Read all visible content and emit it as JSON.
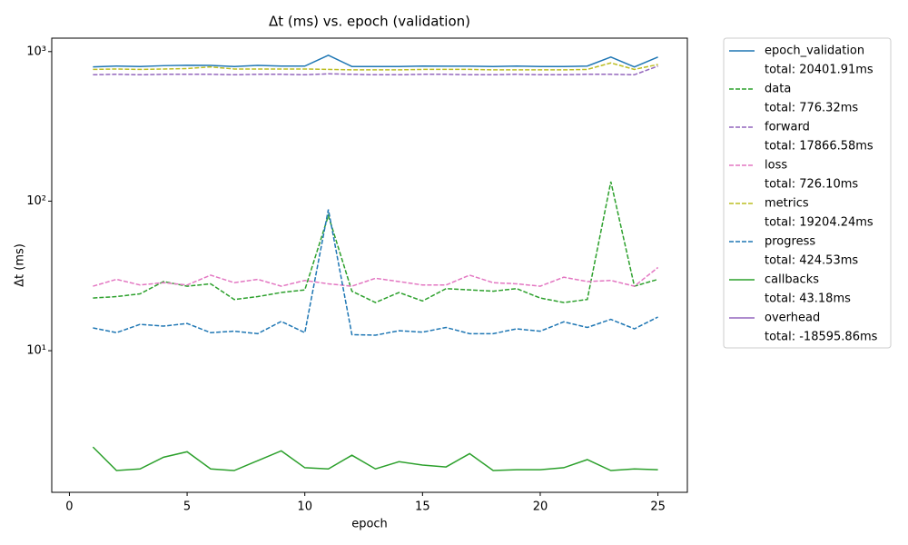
{
  "chart_data": {
    "type": "line",
    "title": "Δt (ms) vs. epoch (validation)",
    "xlabel": "epoch",
    "ylabel": "Δt (ms)",
    "x": [
      1,
      2,
      3,
      4,
      5,
      6,
      7,
      8,
      9,
      10,
      11,
      12,
      13,
      14,
      15,
      16,
      17,
      18,
      19,
      20,
      21,
      22,
      23,
      24,
      25
    ],
    "xlim": [
      -0.75,
      26.25
    ],
    "xticks": [
      0,
      5,
      10,
      15,
      20,
      25
    ],
    "ylim": [
      1.13,
      1230
    ],
    "log_y": true,
    "yticks": [
      {
        "value": 10,
        "label": "10¹"
      },
      {
        "value": 100,
        "label": "10²"
      },
      {
        "value": 1000,
        "label": "10³"
      }
    ],
    "legend": "outside-right",
    "series": [
      {
        "name": "epoch_validation",
        "total": "total: 20401.91ms",
        "color": "#1f77b4",
        "dashed": false,
        "values": [
          790,
          800,
          795,
          805,
          810,
          808,
          795,
          808,
          800,
          800,
          945,
          795,
          795,
          795,
          800,
          798,
          798,
          795,
          800,
          795,
          795,
          800,
          920,
          790,
          920
        ]
      },
      {
        "name": "data",
        "total": "total: 776.32ms",
        "color": "#2ca02c",
        "dashed": true,
        "values": [
          22.5,
          23,
          24,
          29,
          27,
          28,
          22,
          23,
          24.5,
          25.5,
          80,
          25,
          21,
          24.5,
          21.5,
          26,
          25.5,
          25,
          26,
          22.5,
          21,
          22,
          135,
          27,
          30
        ]
      },
      {
        "name": "forward",
        "total": "total: 17866.58ms",
        "color": "#9467bd",
        "dashed": true,
        "values": [
          700,
          705,
          700,
          705,
          705,
          705,
          700,
          705,
          705,
          700,
          710,
          705,
          700,
          700,
          705,
          705,
          700,
          700,
          705,
          700,
          700,
          705,
          705,
          700,
          800
        ]
      },
      {
        "name": "loss",
        "total": "total: 726.10ms",
        "color": "#e377c2",
        "dashed": true,
        "values": [
          27,
          30,
          27.5,
          28.5,
          27.5,
          32,
          28.5,
          30,
          27,
          29.5,
          28,
          27,
          30.5,
          29,
          27.5,
          27.5,
          32,
          28.5,
          28,
          27,
          31,
          29,
          29.5,
          27,
          36
        ]
      },
      {
        "name": "metrics",
        "total": "total: 19204.24ms",
        "color": "#bcbd22",
        "dashed": true,
        "values": [
          760,
          765,
          760,
          765,
          770,
          790,
          765,
          765,
          765,
          765,
          760,
          755,
          755,
          755,
          760,
          760,
          760,
          755,
          755,
          755,
          755,
          760,
          840,
          760,
          820
        ]
      },
      {
        "name": "progress",
        "total": "total: 424.53ms",
        "color": "#1f77b4",
        "dashed": true,
        "values": [
          14.2,
          13.2,
          15,
          14.6,
          15.2,
          13.2,
          13.5,
          13,
          15.7,
          13.2,
          88,
          12.8,
          12.7,
          13.6,
          13.3,
          14.3,
          13,
          13,
          14,
          13.5,
          15.6,
          14.3,
          16.2,
          14,
          16.8
        ]
      },
      {
        "name": "callbacks",
        "total": "total: 43.18ms",
        "color": "#2ca02c",
        "dashed": false,
        "values": [
          2.27,
          1.58,
          1.62,
          1.94,
          2.11,
          1.62,
          1.58,
          1.84,
          2.14,
          1.65,
          1.62,
          2.0,
          1.62,
          1.81,
          1.72,
          1.67,
          2.05,
          1.58,
          1.6,
          1.6,
          1.65,
          1.87,
          1.58,
          1.62,
          1.6
        ]
      },
      {
        "name": "overhead",
        "total": "total: -18595.86ms",
        "color": "#9467bd",
        "dashed": false,
        "values": [
          null,
          null,
          null,
          null,
          null,
          null,
          null,
          null,
          null,
          null,
          null,
          null,
          null,
          null,
          null,
          null,
          null,
          null,
          null,
          null,
          null,
          null,
          null,
          null,
          null
        ]
      }
    ]
  }
}
